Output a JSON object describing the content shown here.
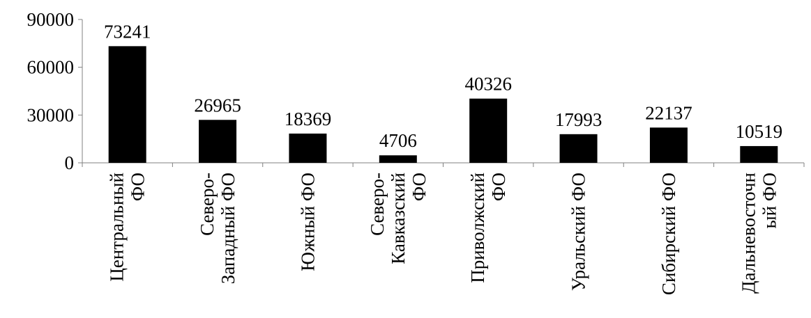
{
  "chart_data": {
    "type": "bar",
    "categories": [
      [
        "Центральный",
        "ФО"
      ],
      [
        "Северо-",
        "Западный ФО"
      ],
      [
        "Южный ФО"
      ],
      [
        "Северо-",
        "Кавказский",
        "ФО"
      ],
      [
        "Приволжский",
        "ФО"
      ],
      [
        "Уральский ФО"
      ],
      [
        "Сибирский ФО"
      ],
      [
        "Дальневосточн",
        "ый ФО"
      ]
    ],
    "values": [
      73241,
      26965,
      18369,
      4706,
      40326,
      17993,
      22137,
      10519
    ],
    "data_labels": [
      "73241",
      "26965",
      "18369",
      "4706",
      "40326",
      "17993",
      "22137",
      "10519"
    ],
    "yticks": [
      0,
      30000,
      60000,
      90000
    ],
    "ytick_labels": [
      "0",
      "30000",
      "60000",
      "90000"
    ],
    "ylim": [
      0,
      90000
    ],
    "title": "",
    "xlabel": "",
    "ylabel": "",
    "bar_color": "#000000",
    "grid": false,
    "legend": "none"
  }
}
